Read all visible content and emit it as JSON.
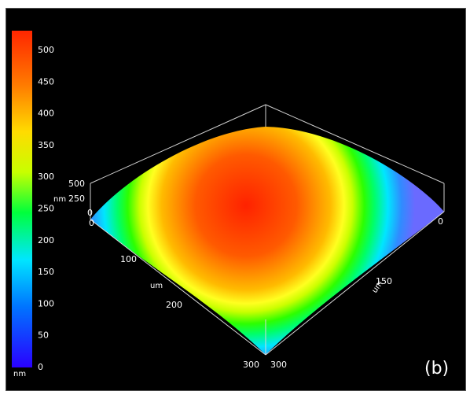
{
  "colorbar": {
    "ticks": [
      "0",
      "50",
      "100",
      "150",
      "200",
      "250",
      "300",
      "350",
      "400",
      "450",
      "500"
    ],
    "unit": "nm",
    "colors": [
      "#2a00ff",
      "#0074ff",
      "#00e6ff",
      "#00ff3c",
      "#c8ff00",
      "#ffdb00",
      "#ff7a00",
      "#ff2600"
    ]
  },
  "axes": {
    "z_ticks": [
      "500",
      "250",
      "0"
    ],
    "z_unit": "nm",
    "left_axis": {
      "ticks": [
        "0",
        "100",
        "200",
        "300"
      ],
      "unit": "um"
    },
    "right_axis": {
      "ticks": [
        "0",
        "150",
        "300"
      ],
      "unit": "um"
    }
  },
  "panel_label": "(b)"
}
